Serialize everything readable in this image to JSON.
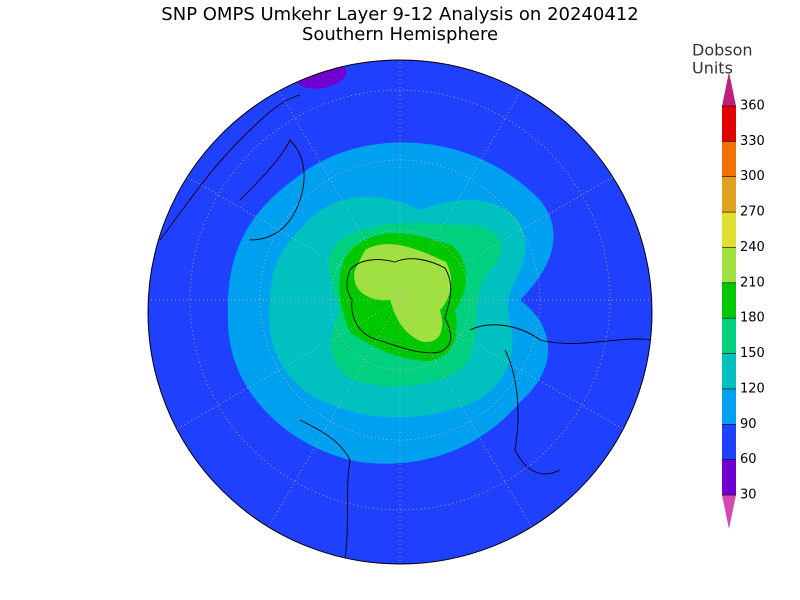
{
  "header": {
    "title": "SNP OMPS Umkehr Layer 9-12 Analysis on 20240412",
    "subtitle": "Southern Hemisphere"
  },
  "colorbar": {
    "label": [
      "Dobson",
      "Units"
    ],
    "ticks": [
      30,
      60,
      90,
      120,
      150,
      180,
      210,
      240,
      270,
      300,
      330,
      360
    ],
    "colors": [
      "#d04ab0",
      "#7000d0",
      "#2040ff",
      "#00a0f0",
      "#00c0c0",
      "#00d080",
      "#00c800",
      "#a0e040",
      "#e0e030",
      "#e0a020",
      "#f07000",
      "#e00000",
      "#c0207a"
    ]
  }
}
